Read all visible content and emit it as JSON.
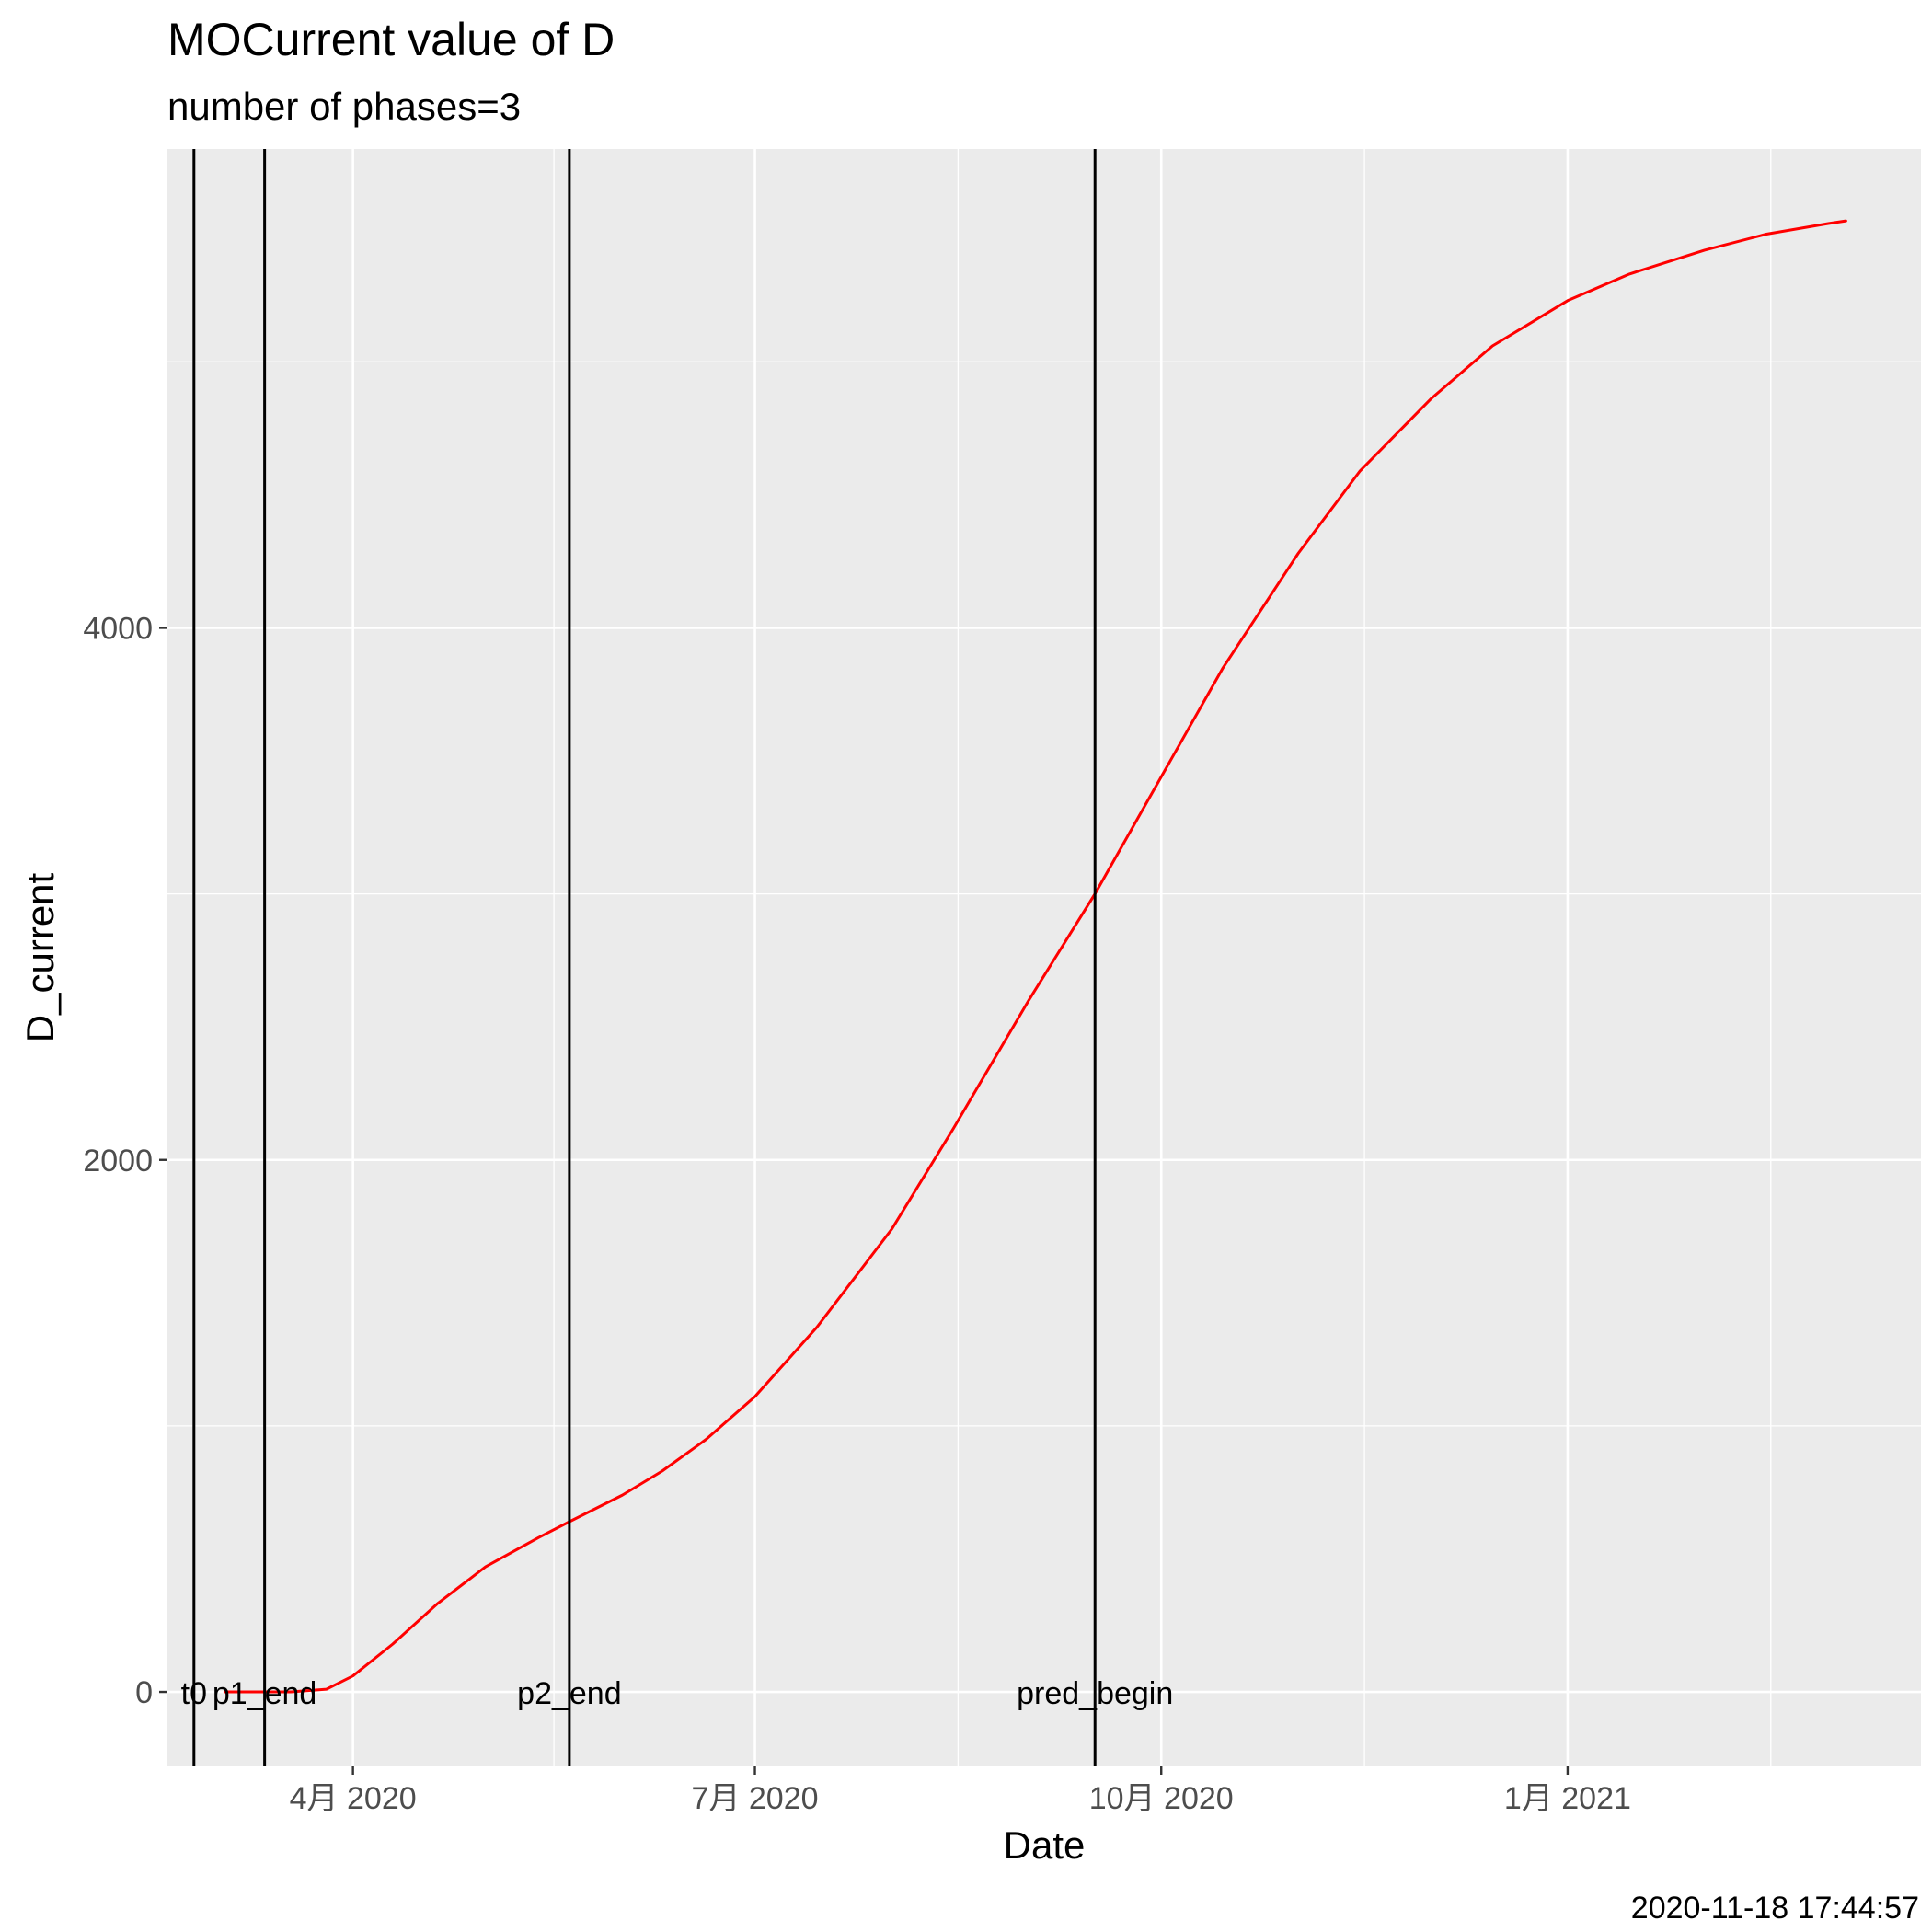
{
  "chart_data": {
    "type": "line",
    "title": "MOCurrent value of D",
    "subtitle": "number of phases=3",
    "xlabel": "Date",
    "ylabel": "D_current",
    "caption": "2020-11-18 17:44:57",
    "x_ticks": [
      {
        "date": "2020-04-01",
        "label": "4月 2020"
      },
      {
        "date": "2020-07-01",
        "label": "7月 2020"
      },
      {
        "date": "2020-10-01",
        "label": "10月 2020"
      },
      {
        "date": "2021-01-01",
        "label": "1月 2021"
      }
    ],
    "y_ticks": [
      0,
      2000,
      4000
    ],
    "xlim": [
      "2020-02-19",
      "2021-03-22"
    ],
    "ylim": [
      -280,
      5800
    ],
    "grid": true,
    "series": [
      {
        "color": "#ff0000",
        "points": [
          {
            "x": "2020-03-03",
            "y": 0
          },
          {
            "x": "2020-03-10",
            "y": 0
          },
          {
            "x": "2020-03-18",
            "y": 0
          },
          {
            "x": "2020-03-26",
            "y": 10
          },
          {
            "x": "2020-04-01",
            "y": 60
          },
          {
            "x": "2020-04-10",
            "y": 180
          },
          {
            "x": "2020-04-20",
            "y": 330
          },
          {
            "x": "2020-05-01",
            "y": 470
          },
          {
            "x": "2020-05-13",
            "y": 580
          },
          {
            "x": "2020-05-20",
            "y": 640
          },
          {
            "x": "2020-06-01",
            "y": 740
          },
          {
            "x": "2020-06-10",
            "y": 830
          },
          {
            "x": "2020-06-20",
            "y": 950
          },
          {
            "x": "2020-07-01",
            "y": 1110
          },
          {
            "x": "2020-07-15",
            "y": 1370
          },
          {
            "x": "2020-08-01",
            "y": 1740
          },
          {
            "x": "2020-08-15",
            "y": 2120
          },
          {
            "x": "2020-09-01",
            "y": 2600
          },
          {
            "x": "2020-09-16",
            "y": 3000
          },
          {
            "x": "2020-10-01",
            "y": 3440
          },
          {
            "x": "2020-10-15",
            "y": 3850
          },
          {
            "x": "2020-11-01",
            "y": 4280
          },
          {
            "x": "2020-11-15",
            "y": 4590
          },
          {
            "x": "2020-12-01",
            "y": 4860
          },
          {
            "x": "2020-12-15",
            "y": 5060
          },
          {
            "x": "2021-01-01",
            "y": 5230
          },
          {
            "x": "2021-01-15",
            "y": 5330
          },
          {
            "x": "2021-02-01",
            "y": 5420
          },
          {
            "x": "2021-02-15",
            "y": 5480
          },
          {
            "x": "2021-03-01",
            "y": 5520
          },
          {
            "x": "2021-03-05",
            "y": 5530
          }
        ]
      }
    ],
    "vlines": [
      {
        "date": "2020-02-25",
        "label": "t0"
      },
      {
        "date": "2020-03-12",
        "label": "p1_end"
      },
      {
        "date": "2020-05-20",
        "label": "p2_end"
      },
      {
        "date": "2020-09-16",
        "label": "pred_begin"
      }
    ]
  }
}
